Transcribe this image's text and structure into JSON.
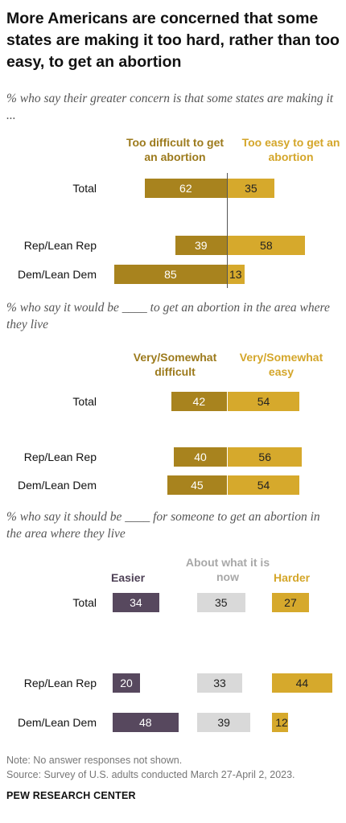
{
  "title": "More Americans are concerned that some states are making it too hard, rather than too easy, to get an abortion",
  "colors": {
    "dark_gold": "#a8831e",
    "light_gold": "#d6a92c",
    "purple": "#57485e",
    "gray": "#d9d9d9",
    "label_gold_dark": "#9c7a1c",
    "label_gold_light": "#d4a62a",
    "label_gray": "#a8a8a8",
    "label_purple": "#4e4156"
  },
  "chart_data": [
    {
      "type": "bar",
      "subtitle": "% who say their greater concern is that some states are making it ...",
      "categories": [
        "Total",
        "Rep/Lean Rep",
        "Dem/Lean Dem"
      ],
      "series": [
        {
          "name": "Too difficult to get an abortion",
          "values": [
            62,
            39,
            85
          ]
        },
        {
          "name": "Too easy to get an abortion",
          "values": [
            35,
            58,
            13
          ]
        }
      ]
    },
    {
      "type": "bar",
      "subtitle": "% who say it would be ____ to get an abortion in the area where they live",
      "categories": [
        "Total",
        "Rep/Lean Rep",
        "Dem/Lean Dem"
      ],
      "series": [
        {
          "name": "Very/Somewhat difficult",
          "values": [
            42,
            40,
            45
          ]
        },
        {
          "name": "Very/Somewhat easy",
          "values": [
            54,
            56,
            54
          ]
        }
      ]
    },
    {
      "type": "bar",
      "subtitle": "% who say it should be ____ for someone to get an abortion in the area where they live",
      "categories": [
        "Total",
        "Rep/Lean Rep",
        "Dem/Lean Dem"
      ],
      "series": [
        {
          "name": "Easier",
          "values": [
            34,
            20,
            48
          ]
        },
        {
          "name": "About what it is now",
          "values": [
            35,
            33,
            39
          ]
        },
        {
          "name": "Harder",
          "values": [
            27,
            44,
            12
          ]
        }
      ]
    }
  ],
  "note": "Note: No answer responses not shown.",
  "source": "Source: Survey of U.S. adults conducted March 27-April 2, 2023.",
  "brand": "PEW RESEARCH CENTER"
}
